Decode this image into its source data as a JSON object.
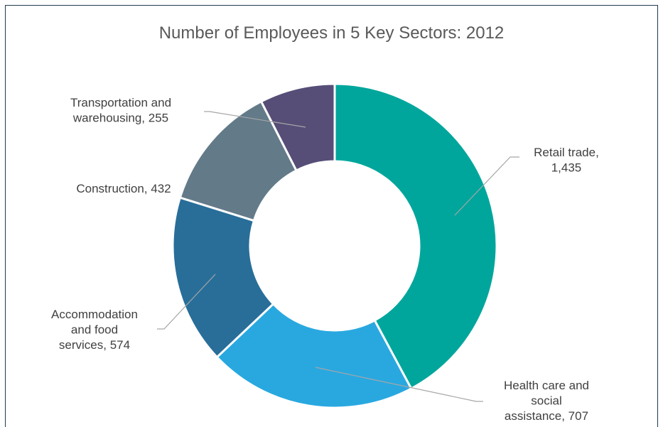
{
  "chart_data": {
    "type": "pie",
    "variant": "donut",
    "title": "Number of Employees in 5 Key Sectors: 2012",
    "slices": [
      {
        "label": "Retail trade",
        "value": 1435,
        "value_label": "1,435",
        "color": "#00a69c",
        "label_lines": [
          "Retail trade,",
          "1,435"
        ]
      },
      {
        "label": "Health care and social assistance",
        "value": 707,
        "value_label": "707",
        "color": "#29a8e0",
        "label_lines": [
          "Health care and",
          "social",
          "assistance, 707"
        ]
      },
      {
        "label": "Accommodation and food services",
        "value": 574,
        "value_label": "574",
        "color": "#286e99",
        "label_lines": [
          "Accommodation",
          "and food",
          "services, 574"
        ]
      },
      {
        "label": "Construction",
        "value": 432,
        "value_label": "432",
        "color": "#637a89",
        "label_lines": [
          "Construction, 432"
        ]
      },
      {
        "label": "Transportation and warehousing",
        "value": 255,
        "value_label": "255",
        "color": "#564e77",
        "label_lines": [
          "Transportation and",
          "warehousing, 255"
        ]
      }
    ],
    "legend": "none",
    "data_labels": "outside with leader lines"
  }
}
